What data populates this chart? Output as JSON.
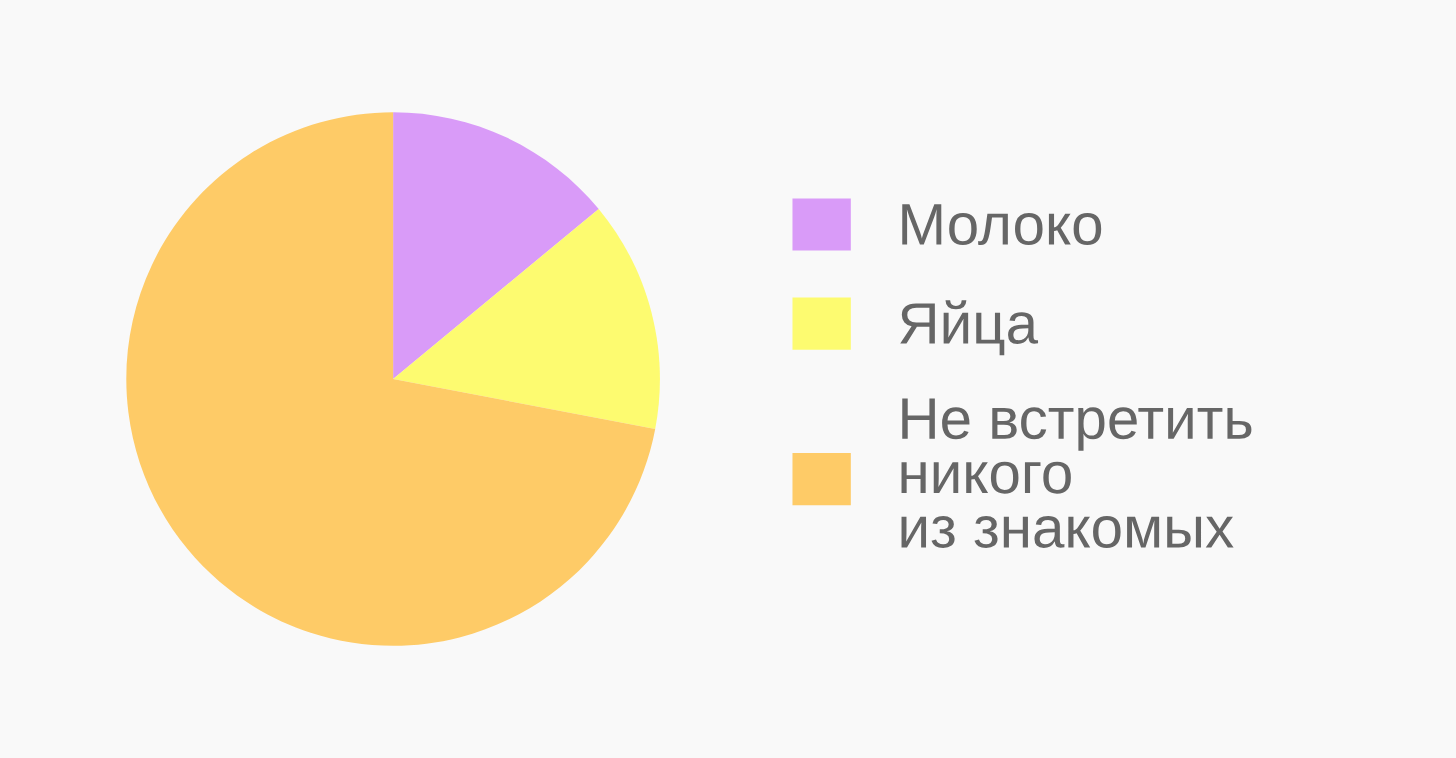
{
  "chart_data": {
    "type": "pie",
    "categories": [
      "Молоко",
      "Яйца",
      "Не встретить\nникого\nиз знакомых"
    ],
    "values": [
      14,
      14,
      72
    ],
    "colors": [
      "#d99bf8",
      "#fdfb70",
      "#fecb67"
    ],
    "legend": "right"
  }
}
